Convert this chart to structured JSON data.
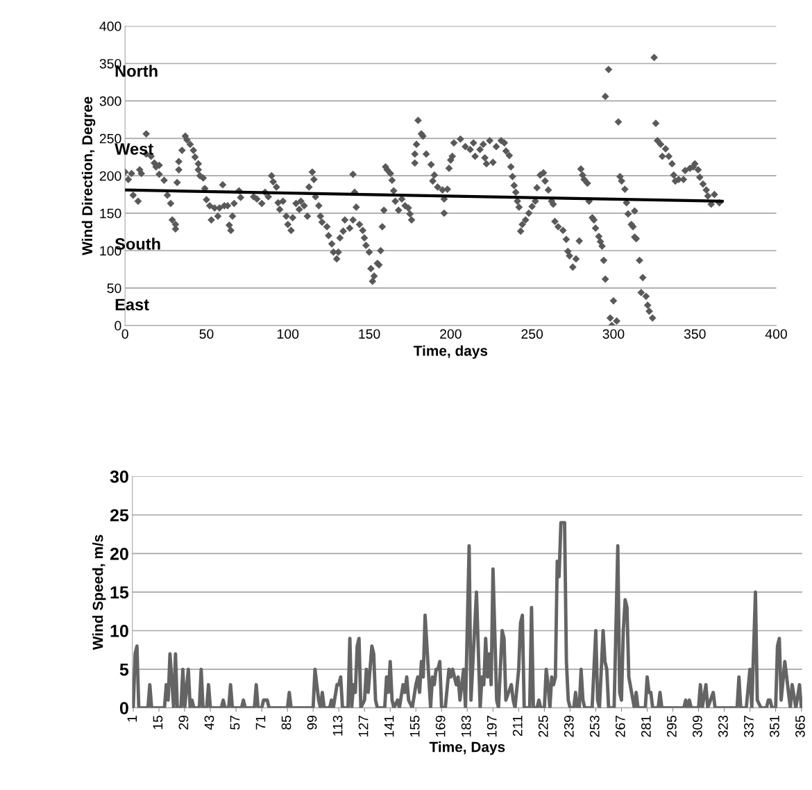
{
  "chart_data": [
    {
      "type": "scatter",
      "xlabel": "Time, days",
      "ylabel": "Wind Direction, Degree",
      "xlim": [
        0,
        400
      ],
      "xticks": [
        0,
        50,
        100,
        150,
        200,
        250,
        300,
        350,
        400
      ],
      "ylim": [
        0,
        400
      ],
      "yticks": [
        0,
        50,
        100,
        150,
        200,
        250,
        300,
        350,
        400
      ],
      "grid": "y",
      "annotations": [
        "North",
        "West",
        "South",
        "East"
      ],
      "series": [
        {
          "marker": "diamond",
          "color": "#595959",
          "x": [
            0,
            4,
            2,
            5,
            8,
            10,
            9,
            13,
            13,
            16,
            18,
            19,
            21,
            21,
            24,
            26,
            28,
            29,
            31,
            31,
            32,
            33,
            33,
            35,
            37,
            38,
            40,
            42,
            43,
            45,
            45,
            46,
            48,
            49,
            50,
            52,
            53,
            55,
            57,
            58,
            60,
            61,
            63,
            64,
            65,
            66,
            67,
            70,
            71,
            79,
            81,
            84,
            86,
            88,
            90,
            91,
            93,
            94,
            95,
            97,
            99,
            100,
            102,
            103,
            105,
            107,
            108,
            110,
            112,
            113,
            115,
            116,
            117,
            119,
            120,
            121,
            124,
            125,
            127,
            128,
            130,
            131,
            132,
            134,
            135,
            138,
            140,
            140,
            141,
            142,
            144,
            146,
            147,
            148,
            150,
            151,
            153,
            152,
            155,
            156,
            157,
            158,
            159,
            160,
            161,
            163,
            164,
            165,
            166,
            168,
            170,
            172,
            174,
            175,
            176,
            178,
            178,
            179,
            180,
            182,
            183,
            185,
            188,
            190,
            189,
            192,
            195,
            196,
            196,
            198,
            199,
            200,
            201,
            202,
            206,
            209,
            212,
            214,
            215,
            218,
            220,
            221,
            222,
            224,
            226,
            228,
            231,
            233,
            234,
            236,
            237,
            238,
            239,
            240,
            241,
            242,
            243,
            244,
            246,
            248,
            250,
            252,
            253,
            255,
            257,
            258,
            260,
            262,
            263,
            264,
            266,
            269,
            271,
            272,
            273,
            275,
            277,
            279,
            280,
            281,
            282,
            284,
            285,
            287,
            288,
            289,
            291,
            292,
            293,
            294,
            295,
            295,
            297,
            300,
            298,
            299,
            302,
            303,
            304,
            305,
            307,
            308,
            309,
            311,
            312,
            313,
            314,
            313,
            316,
            318,
            317,
            320,
            321,
            322,
            324,
            325,
            326,
            327,
            329,
            332,
            330,
            334,
            336,
            337,
            338,
            340,
            343,
            344,
            347,
            349,
            350,
            352,
            353,
            355,
            357,
            358,
            360,
            362,
            365
          ],
          "values": [
            205,
            203,
            195,
            174,
            166,
            203,
            208,
            256,
            229,
            226,
            217,
            212,
            214,
            202,
            194,
            174,
            163,
            141,
            135,
            129,
            191,
            208,
            219,
            234,
            253,
            248,
            242,
            234,
            225,
            216,
            208,
            200,
            197,
            183,
            168,
            160,
            141,
            157,
            146,
            157,
            188,
            160,
            160,
            134,
            127,
            146,
            163,
            180,
            171,
            172,
            169,
            163,
            178,
            172,
            200,
            192,
            185,
            164,
            155,
            166,
            146,
            135,
            127,
            144,
            163,
            155,
            166,
            160,
            146,
            185,
            205,
            195,
            172,
            160,
            146,
            138,
            132,
            120,
            109,
            98,
            89,
            98,
            117,
            126,
            141,
            130,
            141,
            202,
            178,
            158,
            135,
            127,
            117,
            107,
            98,
            76,
            66,
            59,
            83,
            81,
            100,
            132,
            154,
            212,
            208,
            203,
            194,
            180,
            166,
            154,
            169,
            160,
            157,
            149,
            141,
            217,
            229,
            242,
            274,
            256,
            253,
            229,
            215,
            201,
            193,
            185,
            181,
            169,
            150,
            182,
            210,
            221,
            226,
            244,
            249,
            239,
            235,
            244,
            226,
            235,
            242,
            224,
            216,
            247,
            218,
            239,
            247,
            244,
            233,
            227,
            212,
            199,
            187,
            178,
            166,
            158,
            126,
            135,
            141,
            150,
            159,
            166,
            184,
            201,
            204,
            193,
            181,
            166,
            162,
            139,
            132,
            127,
            115,
            99,
            93,
            78,
            89,
            113,
            209,
            201,
            195,
            190,
            166,
            144,
            141,
            130,
            119,
            112,
            106,
            87,
            62,
            306,
            342,
            33,
            10,
            0,
            6,
            272,
            199,
            193,
            182,
            164,
            149,
            135,
            132,
            118,
            116,
            153,
            87,
            64,
            44,
            39,
            27,
            19,
            10,
            358,
            270,
            247,
            242,
            236,
            226,
            226,
            216,
            201,
            193,
            195,
            195,
            207,
            210,
            212,
            216,
            208,
            198,
            189,
            181,
            173,
            162,
            175,
            164
          ]
        },
        {
          "type": "line",
          "color": "#000000",
          "x": [
            0,
            367
          ],
          "values": [
            181,
            166
          ]
        }
      ]
    },
    {
      "type": "line",
      "xlabel": "Time, Days",
      "ylabel": "Wind Speed, m/s",
      "xlim": [
        0.5,
        365.5
      ],
      "xticks": [
        1,
        15,
        29,
        43,
        57,
        71,
        85,
        99,
        113,
        127,
        141,
        155,
        169,
        183,
        197,
        211,
        225,
        239,
        253,
        267,
        281,
        295,
        309,
        323,
        337,
        351,
        365
      ],
      "ylim": [
        0,
        30
      ],
      "yticks": [
        0,
        5,
        10,
        15,
        20,
        25,
        30
      ],
      "grid": "y",
      "series": [
        {
          "color": "#646464",
          "x": [
            1,
            2,
            3,
            4,
            9,
            10,
            11,
            18,
            19,
            20,
            21,
            23,
            24,
            25,
            27,
            28,
            29,
            31,
            32,
            33,
            34,
            37,
            38,
            39,
            41,
            42,
            43,
            49,
            50,
            51,
            53,
            54,
            55,
            60,
            61,
            62,
            67,
            68,
            69,
            71,
            72,
            74,
            75,
            85,
            86,
            87,
            99,
            100,
            102,
            103,
            104,
            105,
            108,
            109,
            110,
            112,
            113,
            114,
            115,
            118,
            119,
            120,
            121,
            122,
            123,
            124,
            125,
            127,
            128,
            129,
            131,
            132,
            133,
            134,
            138,
            139,
            140,
            141,
            142,
            143,
            145,
            146,
            148,
            149,
            150,
            151,
            153,
            155,
            156,
            157,
            158,
            159,
            160,
            163,
            164,
            165,
            166,
            167,
            168,
            169,
            171,
            173,
            174,
            175,
            177,
            178,
            179,
            181,
            182,
            184,
            185,
            188,
            190,
            191,
            192,
            193,
            194,
            195,
            196,
            197,
            199,
            200,
            202,
            203,
            204,
            207,
            208,
            209,
            211,
            212,
            213,
            214,
            217,
            218,
            219,
            221,
            222,
            223,
            225,
            226,
            227,
            228,
            229,
            230,
            231,
            232,
            233,
            234,
            236,
            237,
            238,
            239,
            241,
            242,
            243,
            244,
            245,
            246,
            247,
            251,
            253,
            254,
            255,
            257,
            258,
            259,
            260,
            263,
            265,
            266,
            267,
            268,
            269,
            270,
            271,
            274,
            275,
            276,
            280,
            281,
            282,
            283,
            284,
            287,
            288,
            289,
            301,
            302,
            303,
            304,
            305,
            309,
            310,
            311,
            313,
            314,
            317,
            318,
            330,
            331,
            332,
            335,
            337,
            338,
            340,
            341,
            343,
            346,
            347,
            348,
            349,
            351,
            352,
            353,
            354,
            356,
            358,
            359,
            360,
            362,
            364,
            365
          ],
          "values": [
            0,
            7,
            8,
            0,
            0,
            3,
            0,
            0,
            3,
            1,
            7,
            0,
            7,
            0,
            0,
            5,
            0,
            5,
            0,
            1,
            0,
            0,
            5,
            0,
            0,
            3,
            0,
            0,
            1,
            0,
            0,
            3,
            0,
            0,
            1,
            0,
            0,
            3,
            0,
            0,
            1,
            1,
            0,
            0,
            2,
            0,
            0,
            5,
            1,
            0,
            2,
            0,
            0,
            1,
            0,
            3,
            3,
            4,
            0,
            0,
            9,
            0,
            3,
            2,
            8,
            9,
            0,
            1,
            5,
            2,
            8,
            7,
            1,
            0,
            0,
            4,
            2,
            6,
            1,
            0,
            1,
            0,
            3,
            2,
            4,
            1,
            0,
            3,
            4,
            2,
            6,
            4,
            12,
            0,
            4,
            3,
            5,
            5,
            6,
            0,
            0,
            5,
            4,
            5,
            3,
            4,
            1,
            5,
            0,
            21,
            1,
            15,
            0,
            4,
            3,
            9,
            4,
            7,
            3,
            18,
            1,
            0,
            10,
            9,
            1,
            3,
            1,
            0,
            5,
            11,
            12,
            0,
            0,
            13,
            0,
            0,
            1,
            0,
            0,
            5,
            3,
            0,
            4,
            3,
            4,
            19,
            17,
            24,
            24,
            6,
            1,
            0,
            0,
            2,
            0,
            0,
            5,
            1,
            0,
            0,
            10,
            1,
            0,
            10,
            6,
            5,
            0,
            0,
            21,
            2,
            1,
            10,
            14,
            13,
            4,
            0,
            2,
            0,
            0,
            4,
            2,
            2,
            0,
            0,
            2,
            0,
            0,
            1,
            0,
            1,
            0,
            0,
            3,
            0,
            3,
            0,
            2,
            0,
            0,
            4,
            0,
            0,
            5,
            0,
            15,
            1,
            0,
            0,
            1,
            1,
            0,
            0,
            8,
            9,
            1,
            6,
            2,
            0,
            3,
            0,
            3,
            0
          ]
        }
      ]
    }
  ]
}
